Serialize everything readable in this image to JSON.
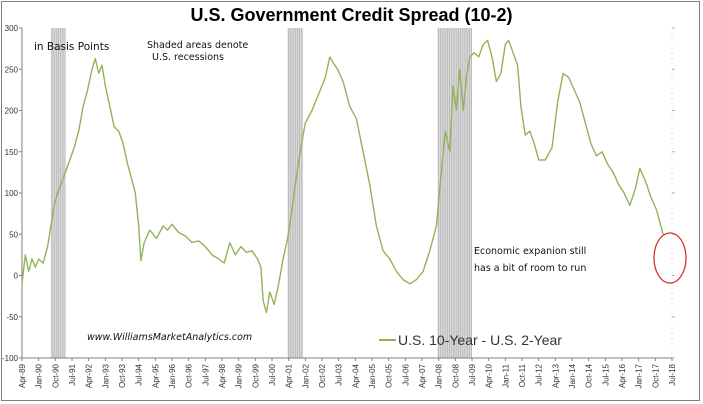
{
  "chart_data": {
    "type": "line",
    "title": "U.S. Government Credit Spread (10-2)",
    "ylabel_note": "in Basis Points",
    "recession_note": [
      "Shaded areas denote",
      "U.S. recessions"
    ],
    "source": "www.WilliamsMarketAnalytics.com",
    "annotation": [
      "Economic expanion still",
      "has a bit of room to run"
    ],
    "ylim": [
      -100,
      300
    ],
    "yticks": [
      -100,
      -50,
      0,
      50,
      100,
      150,
      200,
      250,
      300
    ],
    "xlim": [
      1989.25,
      2018.5
    ],
    "xticks": [
      {
        "label": "Apr-89",
        "t": 1989.25
      },
      {
        "label": "Jan-90",
        "t": 1990.0
      },
      {
        "label": "Oct-90",
        "t": 1990.75
      },
      {
        "label": "Jul-91",
        "t": 1991.5
      },
      {
        "label": "Apr-92",
        "t": 1992.25
      },
      {
        "label": "Jan-93",
        "t": 1993.0
      },
      {
        "label": "Oct-93",
        "t": 1993.75
      },
      {
        "label": "Jul-94",
        "t": 1994.5
      },
      {
        "label": "Apr-95",
        "t": 1995.25
      },
      {
        "label": "Jan-96",
        "t": 1996.0
      },
      {
        "label": "Oct-96",
        "t": 1996.75
      },
      {
        "label": "Jul-97",
        "t": 1997.5
      },
      {
        "label": "Apr-98",
        "t": 1998.25
      },
      {
        "label": "Jan-99",
        "t": 1999.0
      },
      {
        "label": "Oct-99",
        "t": 1999.75
      },
      {
        "label": "Jul-00",
        "t": 2000.5
      },
      {
        "label": "Apr-01",
        "t": 2001.25
      },
      {
        "label": "Jan-02",
        "t": 2002.0
      },
      {
        "label": "Oct-02",
        "t": 2002.75
      },
      {
        "label": "Jul-03",
        "t": 2003.5
      },
      {
        "label": "Apr-04",
        "t": 2004.25
      },
      {
        "label": "Jan-05",
        "t": 2005.0
      },
      {
        "label": "Oct-05",
        "t": 2005.75
      },
      {
        "label": "Jul-06",
        "t": 2006.5
      },
      {
        "label": "Apr-07",
        "t": 2007.25
      },
      {
        "label": "Jan-08",
        "t": 2008.0
      },
      {
        "label": "Oct-08",
        "t": 2008.75
      },
      {
        "label": "Jul-09",
        "t": 2009.5
      },
      {
        "label": "Apr-10",
        "t": 2010.25
      },
      {
        "label": "Jan-11",
        "t": 2011.0
      },
      {
        "label": "Oct-11",
        "t": 2011.75
      },
      {
        "label": "Jul-12",
        "t": 2012.5
      },
      {
        "label": "Apr-13",
        "t": 2013.25
      },
      {
        "label": "Jan-14",
        "t": 2014.0
      },
      {
        "label": "Oct-14",
        "t": 2014.75
      },
      {
        "label": "Jul-15",
        "t": 2015.5
      },
      {
        "label": "Apr-16",
        "t": 2016.25
      },
      {
        "label": "Jan-17",
        "t": 2017.0
      },
      {
        "label": "Oct-17",
        "t": 2017.75
      },
      {
        "label": "Jul-18",
        "t": 2018.5
      }
    ],
    "recessions": [
      [
        1990.55,
        1991.2
      ],
      [
        2001.2,
        2001.9
      ],
      [
        2007.95,
        2009.5
      ]
    ],
    "series": [
      {
        "name": "U.S. 10-Year - U.S. 2-Year",
        "color": "#93b359",
        "points": [
          [
            1989.25,
            -10
          ],
          [
            1989.4,
            25
          ],
          [
            1989.55,
            5
          ],
          [
            1989.7,
            20
          ],
          [
            1989.85,
            10
          ],
          [
            1990.0,
            20
          ],
          [
            1990.2,
            15
          ],
          [
            1990.4,
            35
          ],
          [
            1990.55,
            60
          ],
          [
            1990.7,
            85
          ],
          [
            1990.85,
            100
          ],
          [
            1991.0,
            110
          ],
          [
            1991.2,
            125
          ],
          [
            1991.4,
            140
          ],
          [
            1991.6,
            155
          ],
          [
            1991.8,
            175
          ],
          [
            1992.0,
            205
          ],
          [
            1992.2,
            225
          ],
          [
            1992.4,
            250
          ],
          [
            1992.55,
            263
          ],
          [
            1992.7,
            245
          ],
          [
            1992.85,
            255
          ],
          [
            1993.0,
            230
          ],
          [
            1993.2,
            205
          ],
          [
            1993.4,
            180
          ],
          [
            1993.6,
            175
          ],
          [
            1993.8,
            160
          ],
          [
            1994.0,
            135
          ],
          [
            1994.2,
            115
          ],
          [
            1994.35,
            100
          ],
          [
            1994.5,
            60
          ],
          [
            1994.6,
            18
          ],
          [
            1994.75,
            40
          ],
          [
            1995.0,
            55
          ],
          [
            1995.3,
            45
          ],
          [
            1995.6,
            60
          ],
          [
            1995.8,
            55
          ],
          [
            1996.0,
            62
          ],
          [
            1996.3,
            52
          ],
          [
            1996.6,
            48
          ],
          [
            1996.9,
            40
          ],
          [
            1997.2,
            42
          ],
          [
            1997.5,
            35
          ],
          [
            1997.8,
            25
          ],
          [
            1998.1,
            20
          ],
          [
            1998.35,
            15
          ],
          [
            1998.6,
            40
          ],
          [
            1998.85,
            25
          ],
          [
            1999.1,
            35
          ],
          [
            1999.35,
            28
          ],
          [
            1999.6,
            30
          ],
          [
            1999.85,
            20
          ],
          [
            2000.0,
            10
          ],
          [
            2000.1,
            -30
          ],
          [
            2000.25,
            -45
          ],
          [
            2000.4,
            -20
          ],
          [
            2000.6,
            -35
          ],
          [
            2000.8,
            -10
          ],
          [
            2001.0,
            20
          ],
          [
            2001.2,
            45
          ],
          [
            2001.4,
            80
          ],
          [
            2001.6,
            120
          ],
          [
            2001.8,
            155
          ],
          [
            2002.0,
            185
          ],
          [
            2002.3,
            200
          ],
          [
            2002.6,
            220
          ],
          [
            2002.9,
            240
          ],
          [
            2003.1,
            265
          ],
          [
            2003.25,
            258
          ],
          [
            2003.45,
            250
          ],
          [
            2003.7,
            235
          ],
          [
            2004.0,
            205
          ],
          [
            2004.3,
            190
          ],
          [
            2004.6,
            150
          ],
          [
            2004.9,
            110
          ],
          [
            2005.2,
            60
          ],
          [
            2005.5,
            30
          ],
          [
            2005.8,
            20
          ],
          [
            2006.1,
            5
          ],
          [
            2006.4,
            -5
          ],
          [
            2006.7,
            -10
          ],
          [
            2007.0,
            -5
          ],
          [
            2007.3,
            5
          ],
          [
            2007.6,
            30
          ],
          [
            2007.9,
            60
          ],
          [
            2008.1,
            120
          ],
          [
            2008.3,
            175
          ],
          [
            2008.5,
            150
          ],
          [
            2008.65,
            230
          ],
          [
            2008.8,
            200
          ],
          [
            2008.95,
            250
          ],
          [
            2009.1,
            200
          ],
          [
            2009.25,
            240
          ],
          [
            2009.4,
            265
          ],
          [
            2009.6,
            270
          ],
          [
            2009.8,
            265
          ],
          [
            2010.0,
            280
          ],
          [
            2010.2,
            285
          ],
          [
            2010.4,
            265
          ],
          [
            2010.6,
            235
          ],
          [
            2010.8,
            245
          ],
          [
            2011.0,
            280
          ],
          [
            2011.15,
            285
          ],
          [
            2011.35,
            270
          ],
          [
            2011.55,
            255
          ],
          [
            2011.7,
            205
          ],
          [
            2011.9,
            170
          ],
          [
            2012.1,
            175
          ],
          [
            2012.3,
            160
          ],
          [
            2012.5,
            140
          ],
          [
            2012.8,
            140
          ],
          [
            2013.1,
            155
          ],
          [
            2013.35,
            210
          ],
          [
            2013.6,
            245
          ],
          [
            2013.85,
            240
          ],
          [
            2014.1,
            225
          ],
          [
            2014.35,
            210
          ],
          [
            2014.6,
            185
          ],
          [
            2014.85,
            160
          ],
          [
            2015.1,
            145
          ],
          [
            2015.35,
            150
          ],
          [
            2015.6,
            135
          ],
          [
            2015.85,
            125
          ],
          [
            2016.1,
            110
          ],
          [
            2016.35,
            100
          ],
          [
            2016.6,
            85
          ],
          [
            2016.85,
            105
          ],
          [
            2017.05,
            130
          ],
          [
            2017.3,
            115
          ],
          [
            2017.55,
            95
          ],
          [
            2017.8,
            80
          ],
          [
            2018.0,
            60
          ],
          [
            2018.1,
            50
          ]
        ]
      }
    ]
  }
}
